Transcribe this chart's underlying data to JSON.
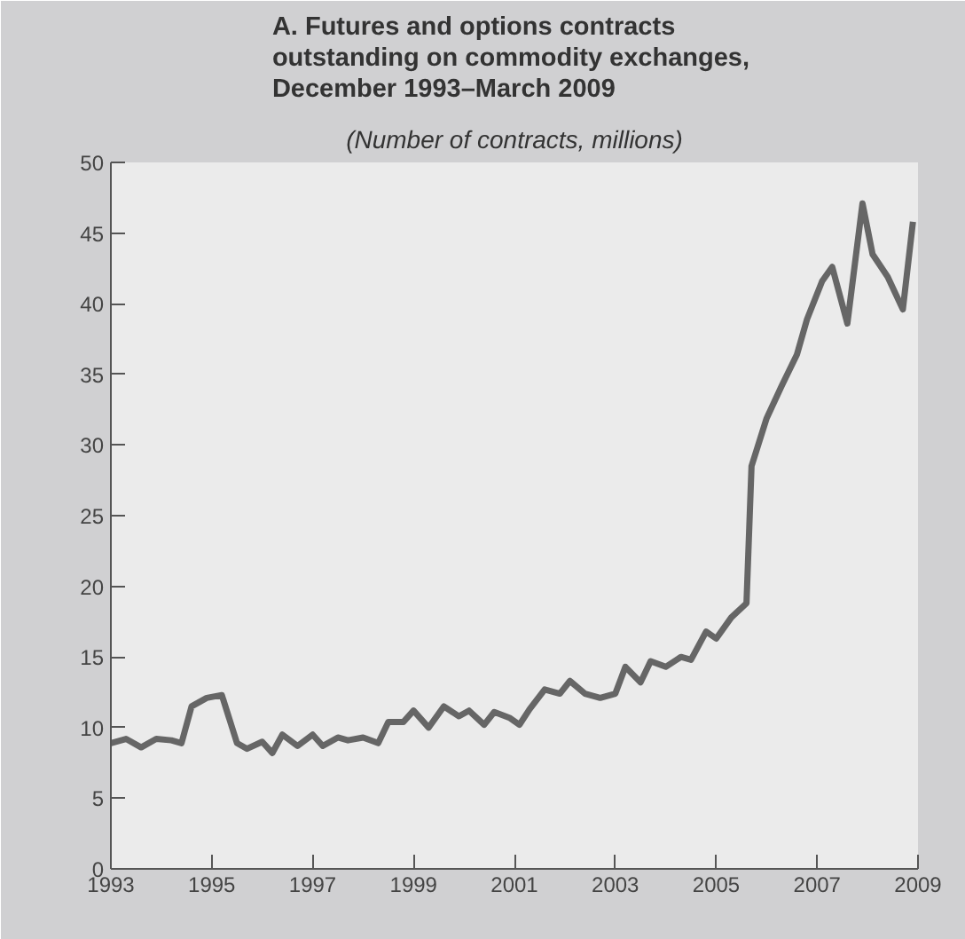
{
  "chart_data": {
    "type": "line",
    "title": "A. Futures and options contracts\noutstanding on commodity  exchanges,\nDecember 1993–March 2009",
    "subtitle": "(Number of contracts, millions)",
    "x": [
      1993.0,
      1993.3,
      1993.6,
      1993.9,
      1994.2,
      1994.4,
      1994.6,
      1994.9,
      1995.2,
      1995.5,
      1995.7,
      1996.0,
      1996.2,
      1996.4,
      1996.7,
      1997.0,
      1997.2,
      1997.5,
      1997.7,
      1998.0,
      1998.3,
      1998.5,
      1998.8,
      1999.0,
      1999.3,
      1999.6,
      1999.9,
      2000.1,
      2000.4,
      2000.6,
      2000.9,
      2001.1,
      2001.3,
      2001.6,
      2001.9,
      2002.1,
      2002.4,
      2002.7,
      2003.0,
      2003.2,
      2003.5,
      2003.7,
      2004.0,
      2004.3,
      2004.5,
      2004.8,
      2005.0,
      2005.3,
      2005.6,
      2005.7,
      2006.0,
      2006.3,
      2006.6,
      2006.8,
      2007.1,
      2007.3,
      2007.6,
      2007.9,
      2008.1,
      2008.4,
      2008.7,
      2008.9
    ],
    "series": [
      {
        "color": "#666666",
        "values": [
          8.9,
          9.2,
          8.6,
          9.2,
          9.1,
          8.9,
          11.5,
          12.1,
          12.3,
          8.9,
          8.5,
          9.0,
          8.2,
          9.5,
          8.7,
          9.5,
          8.7,
          9.3,
          9.1,
          9.3,
          8.9,
          10.4,
          10.4,
          11.2,
          10.0,
          11.5,
          10.8,
          11.2,
          10.2,
          11.1,
          10.7,
          10.2,
          11.3,
          12.7,
          12.4,
          13.3,
          12.4,
          12.1,
          12.4,
          14.3,
          13.2,
          14.7,
          14.3,
          15.0,
          14.8,
          16.8,
          16.3,
          17.8,
          18.8,
          28.5,
          31.9,
          34.2,
          36.4,
          38.9,
          41.6,
          42.6,
          38.6,
          47.1,
          43.5,
          41.9,
          39.6,
          45.8
        ]
      }
    ],
    "xlim": [
      1993,
      2009
    ],
    "xticks": [
      1993,
      1995,
      1997,
      1999,
      2001,
      2003,
      2005,
      2007,
      2009
    ],
    "ylim": [
      0,
      50
    ],
    "yticks": [
      0,
      5,
      10,
      15,
      20,
      25,
      30,
      35,
      40,
      45,
      50
    ],
    "grid": false,
    "marker": "none",
    "line_style": "solid"
  }
}
